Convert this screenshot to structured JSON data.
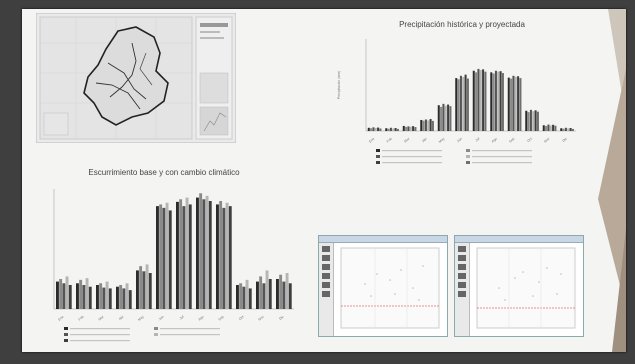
{
  "slide": {
    "chart1_title": "Precipitación histórica y proyectada",
    "chart1_ylabel": "Precipitación (mm)",
    "chart2_title": "Escurrimiento base y con cambio climático"
  },
  "chart_data": [
    {
      "type": "bar",
      "title": "Precipitación histórica y proyectada",
      "ylabel": "Precipitación (mm)",
      "categories": [
        "Ene",
        "Feb",
        "Mar",
        "Abr",
        "May",
        "Jun",
        "Jul",
        "Ago",
        "Sep",
        "Oct",
        "Nov",
        "Dic"
      ],
      "ylim": [
        0,
        400
      ],
      "series": [
        {
          "values": [
            14,
            12,
            22,
            48,
            112,
            230,
            262,
            255,
            232,
            88,
            25,
            12
          ]
        },
        {
          "values": [
            12,
            10,
            18,
            45,
            105,
            225,
            255,
            250,
            228,
            82,
            22,
            10
          ]
        },
        {
          "values": [
            16,
            14,
            20,
            50,
            118,
            240,
            270,
            262,
            240,
            92,
            28,
            14
          ]
        },
        {
          "values": [
            13,
            11,
            19,
            46,
            110,
            235,
            265,
            258,
            236,
            86,
            24,
            11
          ]
        },
        {
          "values": [
            15,
            13,
            21,
            52,
            115,
            245,
            268,
            260,
            238,
            90,
            27,
            13
          ]
        },
        {
          "values": [
            11,
            9,
            17,
            44,
            108,
            228,
            258,
            252,
            230,
            84,
            23,
            9
          ]
        }
      ]
    },
    {
      "type": "bar",
      "title": "Escurrimiento base y con cambio climático",
      "categories": [
        "Ene",
        "Feb",
        "Mar",
        "Abr",
        "May",
        "Jun",
        "Jul",
        "Ago",
        "Sep",
        "Oct",
        "Nov",
        "Dic"
      ],
      "ylim": [
        0,
        1.4
      ],
      "series": [
        {
          "values": [
            0.32,
            0.3,
            0.28,
            0.26,
            0.45,
            1.2,
            1.25,
            1.3,
            1.22,
            0.28,
            0.32,
            0.35
          ]
        },
        {
          "values": [
            0.35,
            0.34,
            0.3,
            0.28,
            0.5,
            1.22,
            1.28,
            1.35,
            1.26,
            0.3,
            0.38,
            0.4
          ]
        },
        {
          "values": [
            0.3,
            0.28,
            0.25,
            0.24,
            0.44,
            1.18,
            1.2,
            1.28,
            1.18,
            0.26,
            0.3,
            0.32
          ]
        },
        {
          "values": [
            0.38,
            0.36,
            0.32,
            0.3,
            0.52,
            1.24,
            1.3,
            1.32,
            1.24,
            0.34,
            0.45,
            0.42
          ]
        },
        {
          "values": [
            0.28,
            0.26,
            0.24,
            0.22,
            0.42,
            1.15,
            1.22,
            1.26,
            1.2,
            0.24,
            0.35,
            0.3
          ]
        }
      ]
    }
  ],
  "colors": {
    "slide_bg": "#f4f4f2",
    "bar_dark": "#2b2b2b",
    "bar_mid": "#7a7a7a",
    "bar_light": "#b8b8b8",
    "accent_deco": "#b8a998"
  }
}
